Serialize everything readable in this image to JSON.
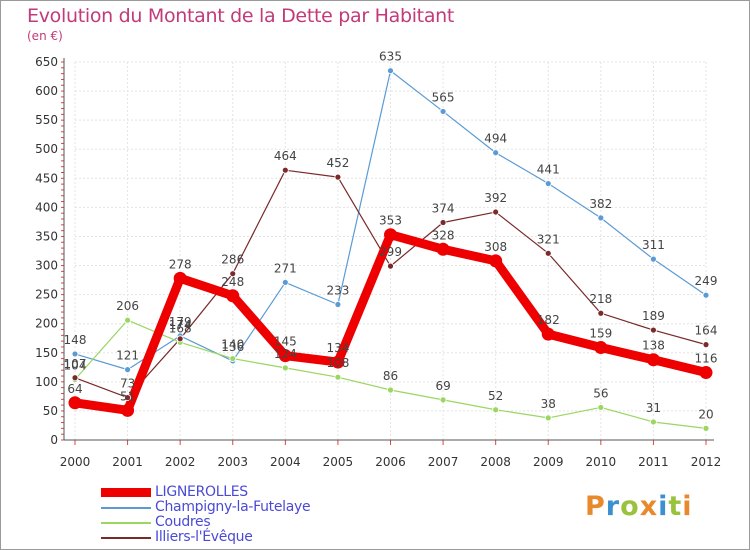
{
  "header": {
    "title": "Evolution du Montant de la Dette par Habitant",
    "subtitle": "(en €)"
  },
  "brand": {
    "letters": [
      "P",
      "r",
      "o",
      "x",
      "i",
      "t",
      "i"
    ],
    "colors": [
      "#e8892b",
      "#3c8fd0",
      "#9ac23c"
    ]
  },
  "chart_data": {
    "type": "line",
    "title": "Evolution du Montant de la Dette par Habitant",
    "subtitle": "(en €)",
    "x": [
      "2000",
      "2001",
      "2002",
      "2003",
      "2004",
      "2005",
      "2006",
      "2007",
      "2008",
      "2009",
      "2010",
      "2011",
      "2012"
    ],
    "ylim": [
      0,
      650
    ],
    "yticks": [
      0,
      50,
      100,
      150,
      200,
      250,
      300,
      350,
      400,
      450,
      500,
      550,
      600,
      650
    ],
    "grid": true,
    "legend_position": "bottom-left",
    "series": [
      {
        "name": "Champigny-la-Futelaye",
        "color": "#5b9bd5",
        "values": [
          148,
          121,
          179,
          136,
          271,
          233,
          635,
          565,
          494,
          441,
          382,
          311,
          249
        ]
      },
      {
        "name": "Coudres",
        "color": "#9ad660",
        "values": [
          104,
          206,
          168,
          140,
          124,
          108,
          86,
          69,
          52,
          38,
          56,
          31,
          20
        ]
      },
      {
        "name": "Illiers-l'Évêque",
        "color": "#7a2a2a",
        "values": [
          107,
          73,
          174,
          286,
          464,
          452,
          299,
          374,
          392,
          321,
          218,
          189,
          164
        ]
      },
      {
        "name": "LIGNEROLLES",
        "color": "#ee0000",
        "values": [
          64,
          51,
          278,
          248,
          145,
          134,
          353,
          328,
          308,
          182,
          159,
          138,
          116
        ]
      }
    ]
  }
}
